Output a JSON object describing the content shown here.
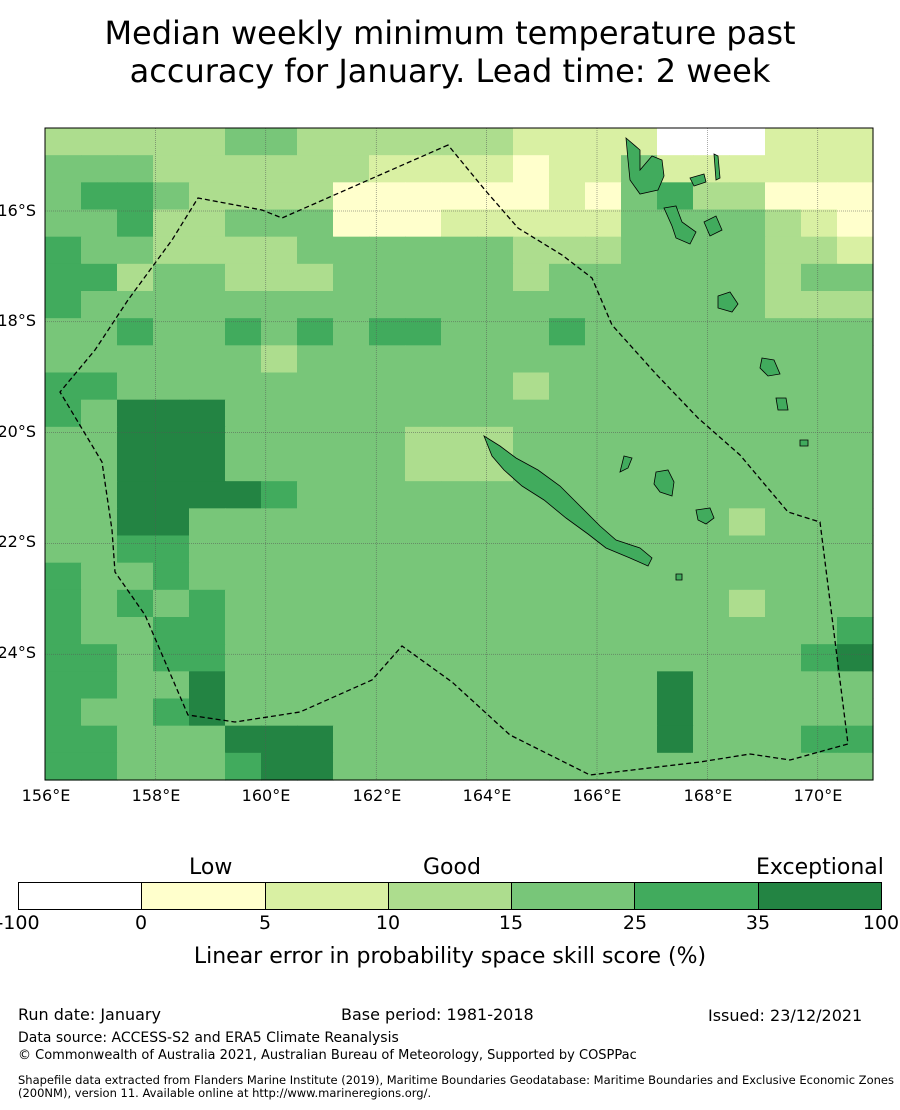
{
  "title_line1": "Median weekly minimum temperature past",
  "title_line2": "accuracy for January. Lead time: 2 week",
  "map": {
    "lat_labels": [
      "16°S",
      "18°S",
      "20°S",
      "22°S",
      "24°S"
    ],
    "lon_labels": [
      "156°E",
      "158°E",
      "160°E",
      "162°E",
      "164°E",
      "166°E",
      "168°E",
      "170°E"
    ],
    "grid_rows": [
      "33333443333332222000222",
      "44433333322221224222222",
      "45543333111111214533111",
      "44533444111222224444321",
      "54433334444443334444332",
      "55344333444443444444344",
      "54444444444444444444333",
      "44544545455444544444444",
      "44444434444444444444444",
      "55444444444443444444444",
      "54666444444444444444444",
      "44666444443334444444444",
      "44666444443334444444444",
      "44666654444444444444444",
      "44664444444444444443444",
      "44554444444444444444444",
      "54454444444444444444444",
      "54545444444444444443444",
      "54455444444444444444445",
      "55455444444444444444456",
      "55446444444444444644444",
      "54456444444444444644444",
      "55444666444444444644455",
      "55444566444444444444444"
    ],
    "legend_colors": [
      "#ffffff",
      "#ffffcc",
      "#d9f0a3",
      "#addd8e",
      "#78c679",
      "#41ab5d",
      "#238443"
    ]
  },
  "colorbar": {
    "categories": [
      "Low",
      "Good",
      "Exceptional"
    ],
    "ticks": [
      "-100",
      "0",
      "5",
      "10",
      "15",
      "25",
      "35",
      "100"
    ],
    "label": "Linear error in probability space skill score (%)"
  },
  "footer": {
    "run_date": "Run date: January",
    "base_period": "Base period: 1981-2018",
    "issued": "Issued: 23/12/2021",
    "data_source": "Data source: ACCESS-S2 and ERA5 Climate Reanalysis",
    "copyright": "© Commonwealth of Australia 2021, Australian Bureau of Meteorology, Supported by COSPPac",
    "shapefile": "Shapefile data extracted from Flanders Marine Institute (2019), Maritime Boundaries Geodatabase: Maritime Boundaries and Exclusive Economic Zones (200NM), version 11. Available online at http://www.marineregions.org/."
  }
}
